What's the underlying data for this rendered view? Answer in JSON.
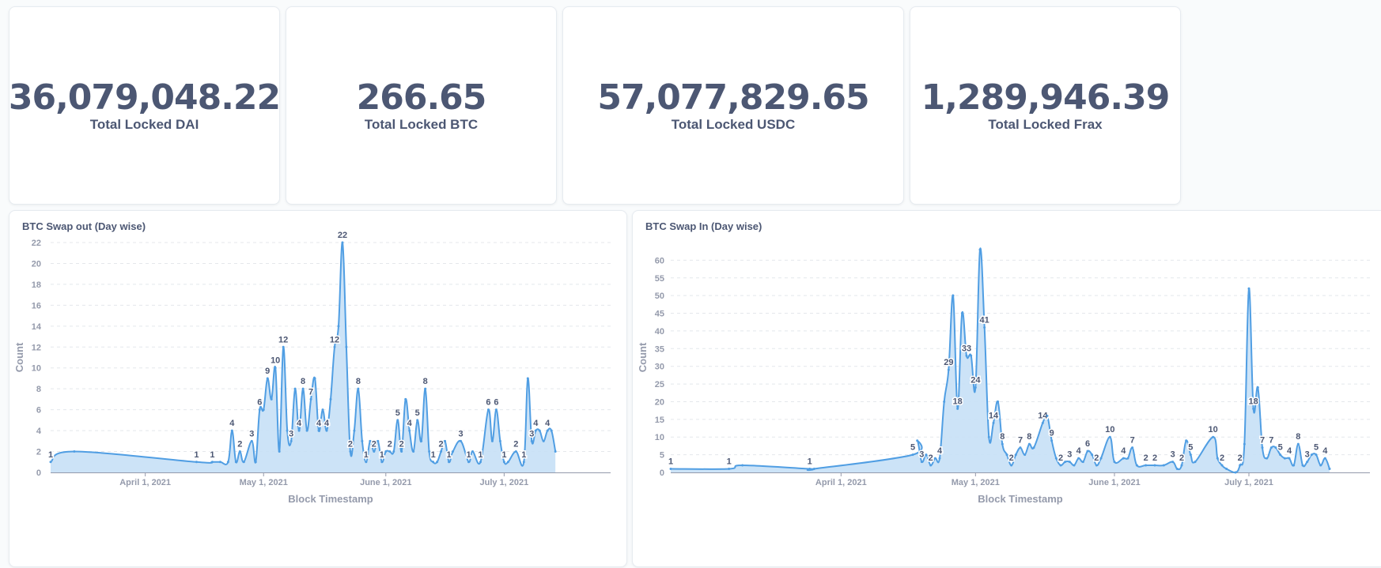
{
  "metrics": [
    {
      "value": "36,079,048.22",
      "label": "Total Locked DAI"
    },
    {
      "value": "266.65",
      "label": "Total Locked BTC"
    },
    {
      "value": "57,077,829.65",
      "label": "Total Locked USDC"
    },
    {
      "value": "1,289,946.39",
      "label": "Total Locked Frax"
    }
  ],
  "colors": {
    "line": "#509ee3",
    "fill": "#c7e0f6",
    "text": "#4c5773",
    "axis": "#949aab",
    "grid": "#e4e7eb"
  },
  "chart_data": [
    {
      "type": "area",
      "title": "BTC Swap out (Day wise)",
      "xlabel": "Block Timestamp",
      "ylabel": "Count",
      "xlim": [
        "2021-03-08",
        "2021-07-28"
      ],
      "ylim": [
        0,
        22
      ],
      "yticks": [
        0,
        2,
        4,
        6,
        8,
        10,
        12,
        14,
        16,
        18,
        20,
        22
      ],
      "xticks": [
        {
          "date": "2021-04-01",
          "label": "April 1, 2021"
        },
        {
          "date": "2021-05-01",
          "label": "May 1, 2021"
        },
        {
          "date": "2021-06-01",
          "label": "June 1, 2021"
        },
        {
          "date": "2021-07-01",
          "label": "July 1, 2021"
        }
      ],
      "points": [
        [
          "2021-03-08",
          1,
          "1"
        ],
        [
          "2021-03-14",
          2,
          ""
        ],
        [
          "2021-04-14",
          1,
          "1"
        ],
        [
          "2021-04-18",
          1,
          "1"
        ],
        [
          "2021-04-20",
          1,
          ""
        ],
        [
          "2021-04-22",
          1,
          ""
        ],
        [
          "2021-04-23",
          4,
          "4"
        ],
        [
          "2021-04-24",
          1,
          ""
        ],
        [
          "2021-04-25",
          2,
          "2"
        ],
        [
          "2021-04-26",
          1,
          ""
        ],
        [
          "2021-04-28",
          3,
          "3"
        ],
        [
          "2021-04-29",
          1,
          ""
        ],
        [
          "2021-04-30",
          6,
          "6"
        ],
        [
          "2021-05-01",
          6,
          ""
        ],
        [
          "2021-05-02",
          9,
          "9"
        ],
        [
          "2021-05-03",
          7,
          ""
        ],
        [
          "2021-05-04",
          10,
          "10"
        ],
        [
          "2021-05-05",
          2,
          ""
        ],
        [
          "2021-05-06",
          12,
          "12"
        ],
        [
          "2021-05-07",
          4,
          ""
        ],
        [
          "2021-05-08",
          3,
          "3"
        ],
        [
          "2021-05-09",
          8,
          ""
        ],
        [
          "2021-05-10",
          4,
          "4"
        ],
        [
          "2021-05-11",
          8,
          "8"
        ],
        [
          "2021-05-12",
          4,
          ""
        ],
        [
          "2021-05-13",
          7,
          "7"
        ],
        [
          "2021-05-14",
          9,
          ""
        ],
        [
          "2021-05-15",
          4,
          "4"
        ],
        [
          "2021-05-16",
          6,
          ""
        ],
        [
          "2021-05-17",
          4,
          "4"
        ],
        [
          "2021-05-18",
          7,
          ""
        ],
        [
          "2021-05-19",
          12,
          "12"
        ],
        [
          "2021-05-20",
          14,
          ""
        ],
        [
          "2021-05-21",
          22,
          "22"
        ],
        [
          "2021-05-22",
          12,
          ""
        ],
        [
          "2021-05-23",
          2,
          "2"
        ],
        [
          "2021-05-24",
          4,
          ""
        ],
        [
          "2021-05-25",
          8,
          "8"
        ],
        [
          "2021-05-26",
          3,
          ""
        ],
        [
          "2021-05-27",
          1,
          "1"
        ],
        [
          "2021-05-28",
          3,
          ""
        ],
        [
          "2021-05-29",
          2,
          "2"
        ],
        [
          "2021-05-30",
          3,
          ""
        ],
        [
          "2021-05-31",
          1,
          "1"
        ],
        [
          "2021-06-01",
          2,
          ""
        ],
        [
          "2021-06-02",
          2,
          "2"
        ],
        [
          "2021-06-03",
          2,
          ""
        ],
        [
          "2021-06-04",
          5,
          "5"
        ],
        [
          "2021-06-05",
          2,
          "2"
        ],
        [
          "2021-06-06",
          7,
          ""
        ],
        [
          "2021-06-07",
          4,
          "4"
        ],
        [
          "2021-06-08",
          2,
          ""
        ],
        [
          "2021-06-09",
          5,
          "5"
        ],
        [
          "2021-06-10",
          3,
          ""
        ],
        [
          "2021-06-11",
          8,
          "8"
        ],
        [
          "2021-06-12",
          2,
          ""
        ],
        [
          "2021-06-13",
          1,
          "1"
        ],
        [
          "2021-06-14",
          1,
          ""
        ],
        [
          "2021-06-15",
          2,
          "2"
        ],
        [
          "2021-06-16",
          3,
          ""
        ],
        [
          "2021-06-17",
          1,
          "1"
        ],
        [
          "2021-06-18",
          2,
          ""
        ],
        [
          "2021-06-20",
          3,
          "3"
        ],
        [
          "2021-06-22",
          1,
          "1"
        ],
        [
          "2021-06-23",
          2,
          ""
        ],
        [
          "2021-06-25",
          1,
          "1"
        ],
        [
          "2021-06-27",
          6,
          "6"
        ],
        [
          "2021-06-28",
          3,
          ""
        ],
        [
          "2021-06-29",
          6,
          "6"
        ],
        [
          "2021-06-30",
          3,
          ""
        ],
        [
          "2021-07-01",
          1,
          "1"
        ],
        [
          "2021-07-02",
          1,
          ""
        ],
        [
          "2021-07-04",
          2,
          "2"
        ],
        [
          "2021-07-06",
          1,
          "1"
        ],
        [
          "2021-07-07",
          9,
          ""
        ],
        [
          "2021-07-08",
          3,
          "3"
        ],
        [
          "2021-07-09",
          4,
          "4"
        ],
        [
          "2021-07-10",
          4,
          ""
        ],
        [
          "2021-07-11",
          3,
          ""
        ],
        [
          "2021-07-12",
          4,
          "4"
        ],
        [
          "2021-07-13",
          4,
          ""
        ],
        [
          "2021-07-14",
          2,
          ""
        ]
      ]
    },
    {
      "type": "area",
      "title": "BTC Swap In (Day wise)",
      "xlabel": "Block Timestamp",
      "ylabel": "Count",
      "xlim": [
        "2021-02-22",
        "2021-07-28"
      ],
      "ylim": [
        0,
        65
      ],
      "yticks": [
        0,
        5,
        10,
        15,
        20,
        25,
        30,
        35,
        40,
        45,
        50,
        55,
        60
      ],
      "xticks": [
        {
          "date": "2021-04-01",
          "label": "April 1, 2021"
        },
        {
          "date": "2021-05-01",
          "label": "May 1, 2021"
        },
        {
          "date": "2021-06-01",
          "label": "June 1, 2021"
        },
        {
          "date": "2021-07-01",
          "label": "July 1, 2021"
        }
      ],
      "points": [
        [
          "2021-02-22",
          1,
          "1"
        ],
        [
          "2021-03-07",
          1,
          "1"
        ],
        [
          "2021-03-10",
          2,
          ""
        ],
        [
          "2021-03-25",
          1,
          "1"
        ],
        [
          "2021-03-26",
          1,
          ""
        ],
        [
          "2021-04-17",
          5,
          "5"
        ],
        [
          "2021-04-18",
          9,
          ""
        ],
        [
          "2021-04-19",
          3,
          "3"
        ],
        [
          "2021-04-20",
          5,
          ""
        ],
        [
          "2021-04-21",
          2,
          "2"
        ],
        [
          "2021-04-22",
          4,
          ""
        ],
        [
          "2021-04-23",
          4,
          "4"
        ],
        [
          "2021-04-24",
          20,
          ""
        ],
        [
          "2021-04-25",
          29,
          "29"
        ],
        [
          "2021-04-26",
          50,
          ""
        ],
        [
          "2021-04-27",
          18,
          "18"
        ],
        [
          "2021-04-28",
          45,
          ""
        ],
        [
          "2021-04-29",
          33,
          "33"
        ],
        [
          "2021-04-30",
          33,
          ""
        ],
        [
          "2021-05-01",
          24,
          "24"
        ],
        [
          "2021-05-02",
          63,
          ""
        ],
        [
          "2021-05-03",
          41,
          "41"
        ],
        [
          "2021-05-04",
          10,
          ""
        ],
        [
          "2021-05-05",
          14,
          "14"
        ],
        [
          "2021-05-06",
          20,
          ""
        ],
        [
          "2021-05-07",
          8,
          "8"
        ],
        [
          "2021-05-08",
          5,
          ""
        ],
        [
          "2021-05-09",
          2,
          "2"
        ],
        [
          "2021-05-10",
          5,
          ""
        ],
        [
          "2021-05-11",
          7,
          "7"
        ],
        [
          "2021-05-12",
          5,
          ""
        ],
        [
          "2021-05-13",
          8,
          "8"
        ],
        [
          "2021-05-14",
          7,
          ""
        ],
        [
          "2021-05-16",
          14,
          "14"
        ],
        [
          "2021-05-17",
          16,
          ""
        ],
        [
          "2021-05-18",
          9,
          "9"
        ],
        [
          "2021-05-19",
          4,
          ""
        ],
        [
          "2021-05-20",
          2,
          "2"
        ],
        [
          "2021-05-21",
          3,
          ""
        ],
        [
          "2021-05-22",
          3,
          "3"
        ],
        [
          "2021-05-23",
          2,
          ""
        ],
        [
          "2021-05-24",
          4,
          "4"
        ],
        [
          "2021-05-25",
          3,
          ""
        ],
        [
          "2021-05-26",
          6,
          "6"
        ],
        [
          "2021-05-27",
          5,
          ""
        ],
        [
          "2021-05-28",
          2,
          "2"
        ],
        [
          "2021-05-29",
          4,
          ""
        ],
        [
          "2021-05-31",
          10,
          "10"
        ],
        [
          "2021-06-01",
          3,
          ""
        ],
        [
          "2021-06-03",
          4,
          "4"
        ],
        [
          "2021-06-04",
          4,
          ""
        ],
        [
          "2021-06-05",
          7,
          "7"
        ],
        [
          "2021-06-06",
          2,
          ""
        ],
        [
          "2021-06-08",
          2,
          "2"
        ],
        [
          "2021-06-10",
          2,
          "2"
        ],
        [
          "2021-06-12",
          2,
          ""
        ],
        [
          "2021-06-14",
          3,
          "3"
        ],
        [
          "2021-06-15",
          1,
          ""
        ],
        [
          "2021-06-16",
          2,
          "2"
        ],
        [
          "2021-06-17",
          9,
          ""
        ],
        [
          "2021-06-18",
          5,
          "5"
        ],
        [
          "2021-06-19",
          3,
          ""
        ],
        [
          "2021-06-23",
          10,
          "10"
        ],
        [
          "2021-06-24",
          4,
          ""
        ],
        [
          "2021-06-25",
          2,
          "2"
        ],
        [
          "2021-06-26",
          1,
          ""
        ],
        [
          "2021-06-28",
          0,
          ""
        ],
        [
          "2021-06-29",
          2,
          "2"
        ],
        [
          "2021-06-30",
          8,
          ""
        ],
        [
          "2021-07-01",
          52,
          ""
        ],
        [
          "2021-07-02",
          18,
          "18"
        ],
        [
          "2021-07-03",
          24,
          ""
        ],
        [
          "2021-07-04",
          7,
          "7"
        ],
        [
          "2021-07-05",
          4,
          ""
        ],
        [
          "2021-07-06",
          7,
          "7"
        ],
        [
          "2021-07-07",
          7,
          ""
        ],
        [
          "2021-07-08",
          5,
          "5"
        ],
        [
          "2021-07-09",
          4,
          ""
        ],
        [
          "2021-07-10",
          4,
          "4"
        ],
        [
          "2021-07-11",
          2,
          ""
        ],
        [
          "2021-07-12",
          8,
          "8"
        ],
        [
          "2021-07-13",
          2,
          ""
        ],
        [
          "2021-07-14",
          3,
          "3"
        ],
        [
          "2021-07-15",
          5,
          ""
        ],
        [
          "2021-07-16",
          5,
          "5"
        ],
        [
          "2021-07-17",
          2,
          ""
        ],
        [
          "2021-07-18",
          4,
          "4"
        ],
        [
          "2021-07-19",
          1,
          ""
        ]
      ]
    }
  ]
}
